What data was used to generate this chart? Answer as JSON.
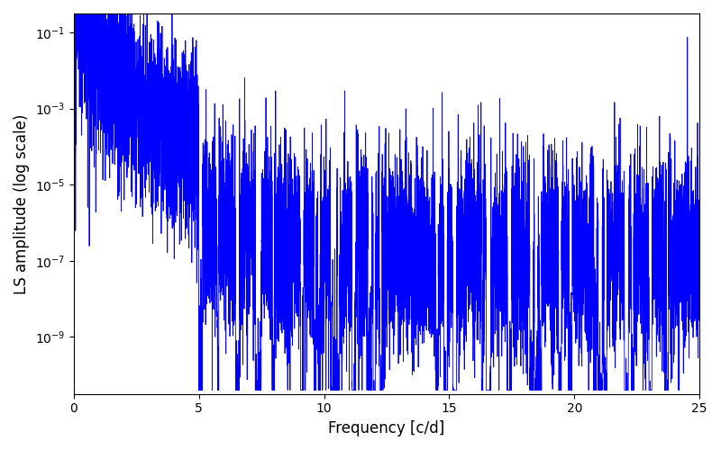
{
  "title": "",
  "xlabel": "Frequency [c/d]",
  "ylabel": "LS amplitude (log scale)",
  "line_color": "#0000ff",
  "line_width": 0.6,
  "xlim": [
    0,
    25
  ],
  "ylim_log": [
    -10.5,
    -0.5
  ],
  "freq_start": 0.0,
  "freq_end": 25.0,
  "n_points": 8000,
  "seed": 42,
  "background_color": "#ffffff",
  "figsize": [
    8.0,
    5.0
  ],
  "dpi": 100
}
